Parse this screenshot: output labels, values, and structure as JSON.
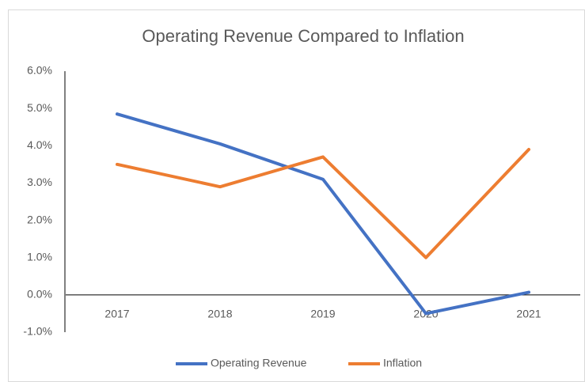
{
  "chart_data": {
    "type": "line",
    "title": "Operating Revenue Compared to Inflation",
    "categories": [
      "2017",
      "2018",
      "2019",
      "2020",
      "2021"
    ],
    "series": [
      {
        "name": "Operating Revenue",
        "color": "#4472c4",
        "values": [
          4.85,
          4.05,
          3.1,
          -0.5,
          0.07
        ]
      },
      {
        "name": "Inflation",
        "color": "#ed7d31",
        "values": [
          3.5,
          2.9,
          3.7,
          1.0,
          3.9
        ]
      }
    ],
    "ylim": [
      -1,
      6
    ],
    "yticks": [
      {
        "value": -1,
        "label": "-1.0%"
      },
      {
        "value": 0,
        "label": "0.0%"
      },
      {
        "value": 1,
        "label": "1.0%"
      },
      {
        "value": 2,
        "label": "2.0%"
      },
      {
        "value": 3,
        "label": "3.0%"
      },
      {
        "value": 4,
        "label": "4.0%"
      },
      {
        "value": 5,
        "label": "5.0%"
      },
      {
        "value": 6,
        "label": "6.0%"
      }
    ],
    "grid": false,
    "legend": "bottom"
  }
}
